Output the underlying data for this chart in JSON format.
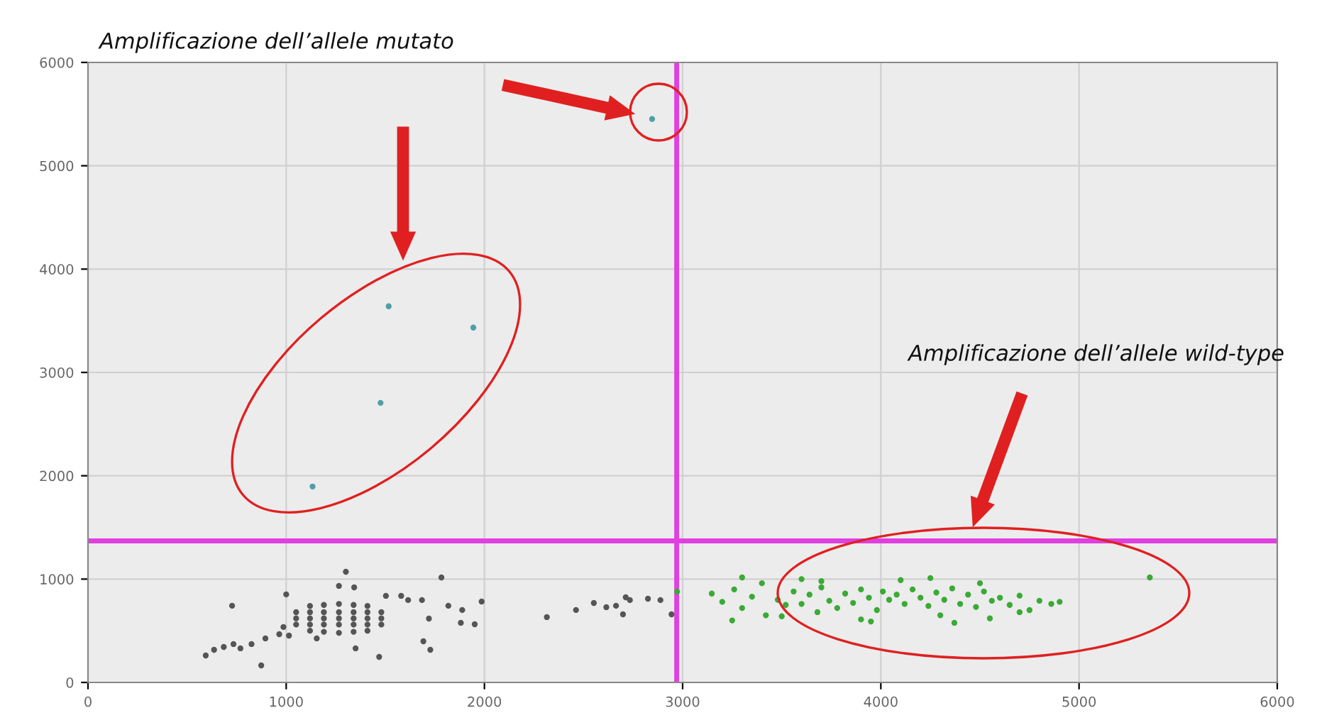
{
  "chart_data": {
    "type": "scatter",
    "series": [
      {
        "color": "#555555",
        "x": [
          1301,
          1783,
          727,
          1000,
          1266,
          1343,
          1503,
          1580,
          1615,
          1685,
          1818,
          1888,
          1986,
          1720,
          1881,
          1951,
          1692,
          1727,
          1469,
          1350,
          874,
          594,
          636,
          685,
          734,
          769,
          825,
          895,
          965,
          986,
          1014,
          1154,
          2315,
          2462,
          2552,
          2615,
          2664,
          2699,
          2713,
          2734,
          2825,
          2888,
          2944,
          1120,
          1190,
          1266,
          1340,
          1410,
          1050,
          1120,
          1190,
          1266,
          1340,
          1410,
          1480,
          1050,
          1120,
          1190,
          1266,
          1340,
          1410,
          1480,
          1050,
          1120,
          1190,
          1266,
          1340,
          1410,
          1480,
          1120,
          1190,
          1266,
          1340,
          1410
        ],
        "values": [
          1071,
          1016,
          742,
          852,
          934,
          920,
          838,
          838,
          797,
          797,
          742,
          701,
          783,
          618,
          577,
          563,
          398,
          316,
          247,
          330,
          165,
          261,
          316,
          343,
          371,
          330,
          371,
          426,
          467,
          536,
          453,
          426,
          632,
          701,
          769,
          728,
          742,
          659,
          824,
          797,
          810,
          797,
          659,
          500,
          490,
          480,
          490,
          500,
          560,
          560,
          560,
          560,
          560,
          560,
          560,
          620,
          620,
          620,
          620,
          620,
          620,
          620,
          680,
          680,
          680,
          680,
          680,
          680,
          680,
          740,
          750,
          760,
          750,
          740
        ]
      },
      {
        "color": "#3aaa35",
        "x": [
          2972,
          3147,
          3200,
          3260,
          3300,
          3350,
          3400,
          3420,
          3480,
          3520,
          3560,
          3600,
          3640,
          3680,
          3700,
          3740,
          3780,
          3820,
          3860,
          3900,
          3940,
          3980,
          4010,
          4042,
          4080,
          4120,
          4160,
          4200,
          4240,
          4280,
          4320,
          4360,
          4400,
          4440,
          4480,
          4520,
          4560,
          4601,
          4650,
          4700,
          4750,
          4800,
          4860,
          4902,
          4371,
          3300,
          3500,
          3700,
          3900,
          4100,
          4300,
          4500,
          4700,
          3250,
          3600,
          3950,
          4250,
          4550,
          5357
        ],
        "values": [
          879,
          860,
          780,
          900,
          720,
          830,
          960,
          650,
          800,
          750,
          880,
          760,
          850,
          680,
          920,
          790,
          720,
          860,
          770,
          900,
          820,
          700,
          880,
          800,
          850,
          760,
          900,
          820,
          740,
          870,
          800,
          910,
          760,
          850,
          730,
          880,
          790,
          820,
          750,
          840,
          700,
          790,
          760,
          780,
          577,
          1016,
          640,
          980,
          610,
          990,
          650,
          960,
          680,
          600,
          1000,
          590,
          1010,
          620,
          1016
        ]
      },
      {
        "color": "#4f9fa8",
        "x": [
          2846,
          1517,
          1944,
          1476,
          1133
        ],
        "values": [
          5453,
          3640,
          3434,
          2706,
          1896
        ]
      }
    ],
    "xlim": [
      0,
      6000
    ],
    "ylim": [
      0,
      6000
    ],
    "xticks": [
      0,
      1000,
      2000,
      3000,
      4000,
      5000,
      6000
    ],
    "yticks": [
      0,
      1000,
      2000,
      3000,
      4000,
      5000,
      6000
    ],
    "grid": true,
    "marker": "circle",
    "ref_lines": [
      {
        "axis": "x",
        "value": 2970,
        "color": "#e040e0"
      },
      {
        "axis": "y",
        "value": 1370,
        "color": "#e040e0"
      }
    ],
    "annotations": [
      "Amplificazione dell’allele mutato",
      "Amplificazione dell’allele wild-type"
    ]
  }
}
